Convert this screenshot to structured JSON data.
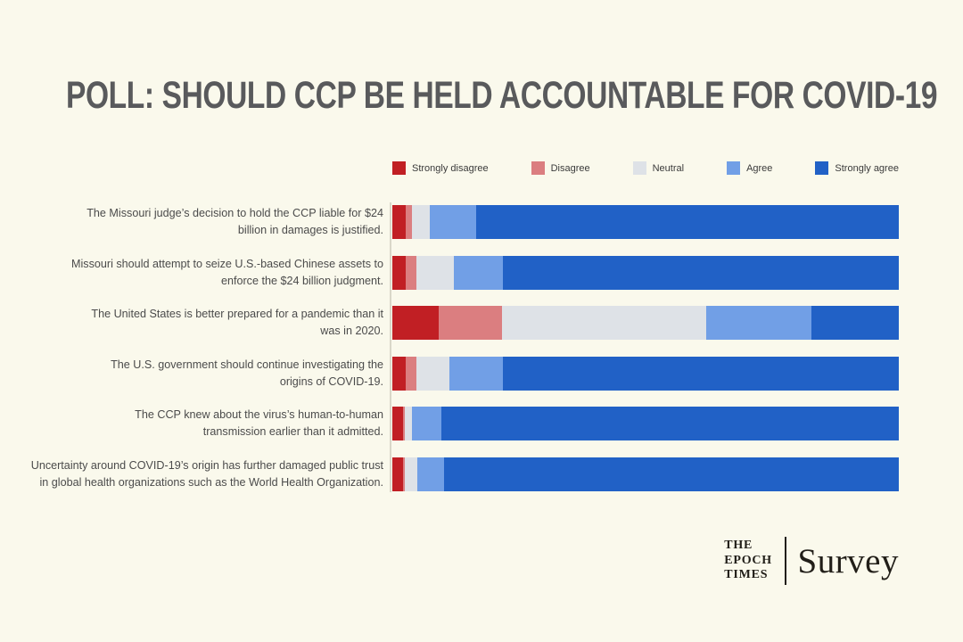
{
  "title": "POLL: SHOULD CCP BE HELD ACCOUNTABLE FOR COVID-19",
  "colors": {
    "background": "#faf9ec",
    "title_text": "#595a5c",
    "label_text": "#4b4b4b",
    "axis_line": "#d9d7c9",
    "strongly_disagree": "#c11f24",
    "disagree": "#db7e80",
    "neutral": "#dee2e7",
    "agree": "#719fe6",
    "strongly_agree": "#2161c6"
  },
  "legend": [
    {
      "label": "Strongly disagree",
      "color": "#c11f24"
    },
    {
      "label": "Disagree",
      "color": "#db7e80"
    },
    {
      "label": "Neutral",
      "color": "#dee2e7"
    },
    {
      "label": "Agree",
      "color": "#719fe6"
    },
    {
      "label": "Strongly agree",
      "color": "#2161c6"
    }
  ],
  "chart_data": {
    "type": "bar",
    "orientation": "horizontal-stacked",
    "unit": "percent",
    "xlim": [
      0,
      100
    ],
    "legend_position": "top",
    "series_names": [
      "Strongly disagree",
      "Disagree",
      "Neutral",
      "Agree",
      "Strongly agree"
    ],
    "rows": [
      {
        "label": "The Missouri judge’s decision to hold the CCP liable for $24 billion in damages is justified.",
        "label_lines": [
          "The Missouri judge’s decision to hold the CCP liable for $24",
          "billion in damages is justified."
        ],
        "values": [
          2.6,
          1.3,
          3.5,
          9.2,
          83.4
        ]
      },
      {
        "label": "Missouri should attempt to seize U.S.-based Chinese assets to enforce the $24 billion judgment.",
        "label_lines": [
          "Missouri should attempt to seize U.S.-based Chinese assets to",
          "enforce the $24 billion judgment."
        ],
        "values": [
          2.6,
          2.1,
          7.4,
          9.7,
          78.2
        ]
      },
      {
        "label": "The United States is better prepared for a pandemic than it was in 2020.",
        "label_lines": [
          "The United States is better prepared for a pandemic than it",
          "was in 2020."
        ],
        "values": [
          9.2,
          12.5,
          40.3,
          20.8,
          17.2
        ]
      },
      {
        "label": "The U.S. government should continue investigating the origins of COVID-19.",
        "label_lines": [
          "The U.S. government should continue investigating the",
          "origins of COVID-19."
        ],
        "values": [
          2.6,
          2.1,
          6.5,
          10.6,
          78.2
        ]
      },
      {
        "label": "The CCP knew about the virus’s human-to-human transmission earlier than it admitted.",
        "label_lines": [
          "The CCP knew about the virus’s human-to-human",
          "transmission earlier than it admitted."
        ],
        "values": [
          2.1,
          0.4,
          1.4,
          5.8,
          90.3
        ]
      },
      {
        "label": "Uncertainty around COVID-19’s origin has further damaged public trust in global health organizations such as the World Health Organization.",
        "label_lines": [
          "Uncertainty around COVID-19’s origin has further damaged public trust",
          "in global health organizations such as the World Health Organization."
        ],
        "values": [
          2.1,
          0.4,
          2.5,
          5.3,
          89.7
        ]
      }
    ]
  },
  "footer": {
    "brand_lines": [
      "THE",
      "EPOCH",
      "TIMES"
    ],
    "wordmark": "Survey"
  }
}
